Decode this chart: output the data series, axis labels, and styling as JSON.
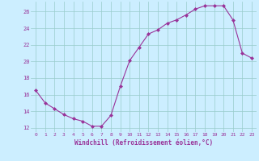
{
  "x": [
    0,
    1,
    2,
    3,
    4,
    5,
    6,
    7,
    8,
    9,
    10,
    11,
    12,
    13,
    14,
    15,
    16,
    17,
    18,
    19,
    20,
    21,
    22,
    23
  ],
  "y": [
    16.5,
    15.0,
    14.3,
    13.6,
    13.1,
    12.8,
    12.2,
    12.2,
    13.5,
    17.0,
    20.1,
    21.7,
    23.3,
    23.8,
    24.6,
    25.0,
    25.6,
    26.3,
    26.7,
    26.7,
    26.7,
    25.0,
    21.0,
    20.4
  ],
  "line_color": "#993399",
  "marker": "D",
  "marker_size": 2.0,
  "bg_color": "#cceeff",
  "grid_color": "#99cccc",
  "xlabel": "Windchill (Refroidissement éolien,°C)",
  "xlabel_color": "#993399",
  "tick_color": "#993399",
  "ylim": [
    11.5,
    27.2
  ],
  "xlim": [
    -0.5,
    23.5
  ],
  "yticks": [
    12,
    14,
    16,
    18,
    20,
    22,
    24,
    26
  ],
  "xticks": [
    0,
    1,
    2,
    3,
    4,
    5,
    6,
    7,
    8,
    9,
    10,
    11,
    12,
    13,
    14,
    15,
    16,
    17,
    18,
    19,
    20,
    21,
    22,
    23
  ]
}
